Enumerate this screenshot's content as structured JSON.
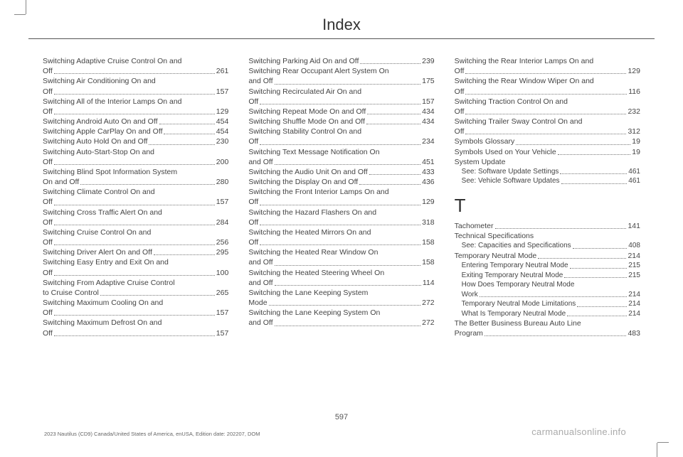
{
  "header": {
    "title": "Index"
  },
  "page_number": "597",
  "footer_left": "2023 Nautilus (CD9) Canada/United States of America, enUSA, Edition date: 202207, DOM",
  "footer_right": "carmanualsonline.info",
  "columns": [
    {
      "entries": [
        {
          "label_lines": [
            "Switching Adaptive Cruise Control On and",
            "Off"
          ],
          "page": "261"
        },
        {
          "label_lines": [
            "Switching Air Conditioning On and",
            "Off"
          ],
          "page": "157"
        },
        {
          "label_lines": [
            "Switching All of the Interior Lamps On and",
            "Off"
          ],
          "page": "129"
        },
        {
          "label_lines": [
            "Switching Android Auto On and Off"
          ],
          "page": "454"
        },
        {
          "label_lines": [
            "Switching Apple CarPlay On and Off"
          ],
          "page": "454"
        },
        {
          "label_lines": [
            "Switching Auto Hold On and Off"
          ],
          "page": "230"
        },
        {
          "label_lines": [
            "Switching Auto-Start-Stop On and",
            "Off"
          ],
          "page": "200"
        },
        {
          "label_lines": [
            "Switching Blind Spot Information System",
            "On and Off"
          ],
          "page": "280"
        },
        {
          "label_lines": [
            "Switching Climate Control On and",
            "Off"
          ],
          "page": "157"
        },
        {
          "label_lines": [
            "Switching Cross Traffic Alert On and",
            "Off"
          ],
          "page": "284"
        },
        {
          "label_lines": [
            "Switching Cruise Control On and",
            "Off"
          ],
          "page": "256"
        },
        {
          "label_lines": [
            "Switching Driver Alert On and Off"
          ],
          "page": "295"
        },
        {
          "label_lines": [
            "Switching Easy Entry and Exit On and",
            "Off"
          ],
          "page": "100"
        },
        {
          "label_lines": [
            "Switching From Adaptive Cruise Control",
            "to Cruise Control"
          ],
          "page": "265"
        },
        {
          "label_lines": [
            "Switching Maximum Cooling On and",
            "Off"
          ],
          "page": "157"
        },
        {
          "label_lines": [
            "Switching Maximum Defrost On and",
            "Off"
          ],
          "page": "157"
        }
      ]
    },
    {
      "entries": [
        {
          "label_lines": [
            "Switching Parking Aid On and Off"
          ],
          "page": "239"
        },
        {
          "label_lines": [
            "Switching Rear Occupant Alert System On",
            "and Off"
          ],
          "page": "175"
        },
        {
          "label_lines": [
            "Switching Recirculated Air On and",
            "Off"
          ],
          "page": "157"
        },
        {
          "label_lines": [
            "Switching Repeat Mode On and Off"
          ],
          "page": "434"
        },
        {
          "label_lines": [
            "Switching Shuffle Mode On and Off"
          ],
          "page": "434"
        },
        {
          "label_lines": [
            "Switching Stability Control On and",
            "Off"
          ],
          "page": "234"
        },
        {
          "label_lines": [
            "Switching Text Message Notification On",
            "and Off"
          ],
          "page": "451"
        },
        {
          "label_lines": [
            "Switching the Audio Unit On and Off"
          ],
          "page": "433"
        },
        {
          "label_lines": [
            "Switching the Display On and Off"
          ],
          "page": "436"
        },
        {
          "label_lines": [
            "Switching the Front Interior Lamps On and",
            "Off"
          ],
          "page": "129"
        },
        {
          "label_lines": [
            "Switching the Hazard Flashers On and",
            "Off"
          ],
          "page": "318"
        },
        {
          "label_lines": [
            "Switching the Heated Mirrors On and",
            "Off"
          ],
          "page": "158"
        },
        {
          "label_lines": [
            "Switching the Heated Rear Window On",
            "and Off"
          ],
          "page": "158"
        },
        {
          "label_lines": [
            "Switching the Heated Steering Wheel On",
            "and Off"
          ],
          "page": "114"
        },
        {
          "label_lines": [
            "Switching the Lane Keeping System",
            "Mode"
          ],
          "page": "272"
        },
        {
          "label_lines": [
            "Switching the Lane Keeping System On",
            "and Off"
          ],
          "page": "272"
        }
      ]
    },
    {
      "entries": [
        {
          "label_lines": [
            "Switching the Rear Interior Lamps On and",
            "Off"
          ],
          "page": "129"
        },
        {
          "label_lines": [
            "Switching the Rear Window Wiper On and",
            "Off"
          ],
          "page": "116"
        },
        {
          "label_lines": [
            "Switching Traction Control On and",
            "Off"
          ],
          "page": "232"
        },
        {
          "label_lines": [
            "Switching Trailer Sway Control On and",
            "Off"
          ],
          "page": "312"
        },
        {
          "label_lines": [
            "Symbols Glossary"
          ],
          "page": "19"
        },
        {
          "label_lines": [
            "Symbols Used on Your Vehicle"
          ],
          "page": "19"
        },
        {
          "label_lines": [
            "System Update"
          ],
          "nopage": true
        },
        {
          "label_lines": [
            "See: Software Update Settings"
          ],
          "page": "461",
          "sub": true
        },
        {
          "label_lines": [
            "See: Vehicle Software Updates"
          ],
          "page": "461",
          "sub": true
        },
        {
          "section": "T"
        },
        {
          "label_lines": [
            "Tachometer"
          ],
          "page": "141"
        },
        {
          "label_lines": [
            "Technical Specifications"
          ],
          "nopage": true
        },
        {
          "label_lines": [
            "See: Capacities and Specifications"
          ],
          "page": "408",
          "sub": true
        },
        {
          "label_lines": [
            "Temporary Neutral Mode"
          ],
          "page": "214"
        },
        {
          "label_lines": [
            "Entering Temporary Neutral Mode"
          ],
          "page": "215",
          "sub": true
        },
        {
          "label_lines": [
            "Exiting Temporary Neutral Mode"
          ],
          "page": "215",
          "sub": true
        },
        {
          "label_lines": [
            "How Does Temporary Neutral Mode",
            "Work"
          ],
          "page": "214",
          "sub": true
        },
        {
          "label_lines": [
            "Temporary Neutral Mode Limitations"
          ],
          "page": "214",
          "sub": true
        },
        {
          "label_lines": [
            "What Is Temporary Neutral Mode"
          ],
          "page": "214",
          "sub": true
        },
        {
          "label_lines": [
            "The Better Business Bureau Auto Line",
            "Program"
          ],
          "page": "483"
        }
      ]
    }
  ]
}
